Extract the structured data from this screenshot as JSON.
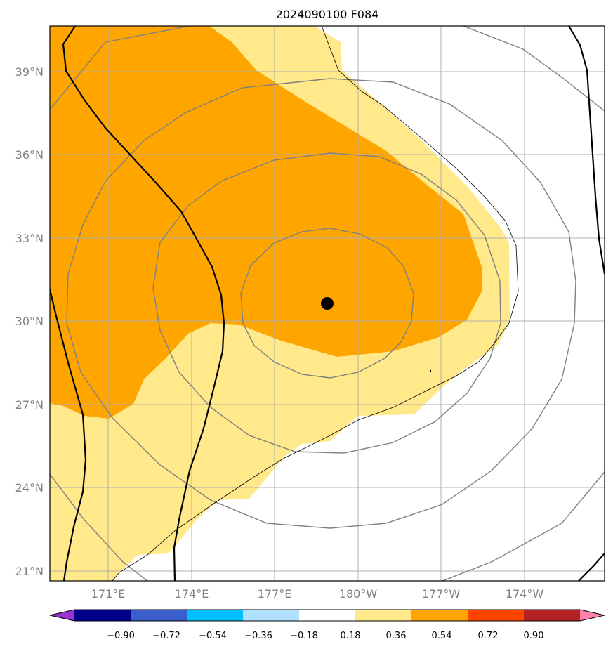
{
  "title": "2024090100 F084",
  "lat_labels": [
    "39°N",
    "36°N",
    "33°N",
    "30°N",
    "27°N",
    "24°N",
    "21°N"
  ],
  "lon_labels": [
    "171°E",
    "174°E",
    "177°E",
    "180°W",
    "177°W",
    "174°W"
  ],
  "colorbar": {
    "ticks": [
      "−0.90",
      "−0.72",
      "−0.54",
      "−0.36",
      "−0.18",
      "0.18",
      "0.36",
      "0.54",
      "0.72",
      "0.90"
    ],
    "colors": [
      "#9932cc",
      "#00008b",
      "#3a5fcd",
      "#00bfff",
      "#b0e2ff",
      "#ffffff",
      "#ffe98a",
      "#ffa500",
      "#ff4500",
      "#b22222",
      "#ff82ab"
    ]
  },
  "colors": {
    "band_0_18_0_36": "#ffe98a",
    "band_0_36_0_54": "#ffa500",
    "grid": "#b0b0b0",
    "contour": "#808080",
    "thick_line": "#000000"
  },
  "center_marker": "filled-circle"
}
